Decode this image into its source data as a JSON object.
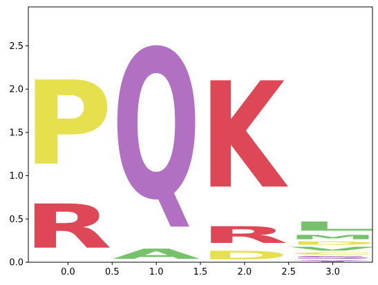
{
  "chart_data": {
    "type": "sequence-logo",
    "title": "",
    "xlabel": "",
    "ylabel": "",
    "xlim": [
      -0.45,
      3.45
    ],
    "ylim": [
      0,
      2.95
    ],
    "x_ticks": [
      0.0,
      0.5,
      1.0,
      1.5,
      2.0,
      2.5,
      3.0
    ],
    "x_tick_labels": [
      "0.0",
      "0.5",
      "1.0",
      "1.5",
      "2.0",
      "2.5",
      "3.0"
    ],
    "y_ticks": [
      0.0,
      0.5,
      1.0,
      1.5,
      2.0,
      2.5
    ],
    "y_tick_labels": [
      "0.0",
      "0.5",
      "1.0",
      "1.5",
      "2.0",
      "2.5"
    ],
    "colors": {
      "P": "#e6e04f",
      "R": "#de4756",
      "K": "#de4756",
      "A": "#77c16c",
      "M": "#77c16c",
      "V": "#77c16c",
      "L": "#77c16c",
      "Q": "#b170c2",
      "S": "#b170c2",
      "Y": "#b170c2",
      "D": "#e6e04f",
      "C": "#e6e04f"
    },
    "positions": [
      {
        "x": 0,
        "letters": [
          {
            "char": "R",
            "y0": 0.0,
            "y1": 0.82
          },
          {
            "char": "P",
            "y0": 0.82,
            "y1": 2.38
          }
        ]
      },
      {
        "x": 1,
        "letters": [
          {
            "char": "A",
            "y0": 0.0,
            "y1": 0.19
          },
          {
            "char": "Q",
            "y0": 0.19,
            "y1": 2.95
          }
        ]
      },
      {
        "x": 2,
        "letters": [
          {
            "char": "D",
            "y0": 0.0,
            "y1": 0.16
          },
          {
            "char": "R",
            "y0": 0.16,
            "y1": 0.47
          },
          {
            "char": "K",
            "y0": 0.47,
            "y1": 2.44
          }
        ]
      },
      {
        "x": 3,
        "letters": [
          {
            "char": "Y",
            "y0": 0.0,
            "y1": 0.03
          },
          {
            "char": "S",
            "y0": 0.03,
            "y1": 0.08
          },
          {
            "char": "C",
            "y0": 0.08,
            "y1": 0.12
          },
          {
            "char": "V",
            "y0": 0.12,
            "y1": 0.19
          },
          {
            "char": "D",
            "y0": 0.19,
            "y1": 0.25
          },
          {
            "char": "M",
            "y0": 0.25,
            "y1": 0.33
          },
          {
            "char": "L",
            "y0": 0.33,
            "y1": 0.5
          }
        ]
      }
    ]
  }
}
